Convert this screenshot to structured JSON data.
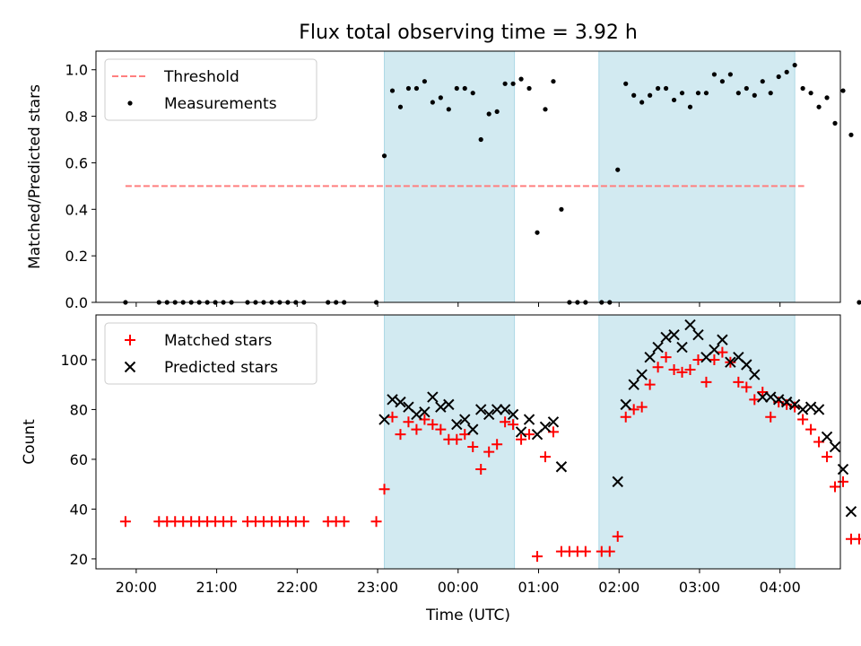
{
  "title": "Flux total observing time = 3.92 h",
  "chart_data": [
    {
      "type": "scatter",
      "ylabel": "Matched/Predicted stars",
      "xlabel": "",
      "xlim": [
        "19:30",
        "04:45"
      ],
      "ylim": [
        0,
        1.08
      ],
      "y_ticks": [
        "0.0",
        "0.2",
        "0.4",
        "0.6",
        "0.8",
        "1.0"
      ],
      "y_tick_values": [
        0,
        0.2,
        0.4,
        0.6,
        0.8,
        1.0
      ],
      "legend": {
        "placement": "upper left",
        "entries": [
          "Threshold",
          "Measurements"
        ]
      },
      "shaded_intervals": [
        [
          "23:05",
          "00:42"
        ],
        [
          "01:45",
          "04:11"
        ]
      ],
      "shade_color": "#add8e6",
      "threshold": {
        "name": "Threshold",
        "y": 0.5,
        "x_range": [
          "19:52",
          "04:18"
        ],
        "color": "#ff7f7f"
      },
      "series": [
        {
          "name": "Measurements",
          "color": "#000000",
          "marker": "dot",
          "points": [
            [
              "19:52",
              0
            ],
            [
              "20:17",
              0
            ],
            [
              "20:23",
              0
            ],
            [
              "20:29",
              0
            ],
            [
              "20:35",
              0
            ],
            [
              "20:41",
              0
            ],
            [
              "20:47",
              0
            ],
            [
              "20:53",
              0
            ],
            [
              "20:59",
              0
            ],
            [
              "21:05",
              0
            ],
            [
              "21:11",
              0
            ],
            [
              "21:23",
              0
            ],
            [
              "21:29",
              0
            ],
            [
              "21:35",
              0
            ],
            [
              "21:41",
              0
            ],
            [
              "21:47",
              0
            ],
            [
              "21:53",
              0
            ],
            [
              "21:59",
              0
            ],
            [
              "22:05",
              0
            ],
            [
              "22:23",
              0
            ],
            [
              "22:29",
              0
            ],
            [
              "22:35",
              0
            ],
            [
              "22:59",
              0
            ],
            [
              "23:05",
              0.63
            ],
            [
              "23:11",
              0.91
            ],
            [
              "23:17",
              0.84
            ],
            [
              "23:23",
              0.92
            ],
            [
              "23:29",
              0.92
            ],
            [
              "23:35",
              0.95
            ],
            [
              "23:41",
              0.86
            ],
            [
              "23:47",
              0.88
            ],
            [
              "23:53",
              0.83
            ],
            [
              "23:59",
              0.92
            ],
            [
              "00:05",
              0.92
            ],
            [
              "00:11",
              0.9
            ],
            [
              "00:17",
              0.7
            ],
            [
              "00:23",
              0.81
            ],
            [
              "00:29",
              0.82
            ],
            [
              "00:35",
              0.94
            ],
            [
              "00:41",
              0.94
            ],
            [
              "00:47",
              0.96
            ],
            [
              "00:53",
              0.92
            ],
            [
              "00:59",
              0.3
            ],
            [
              "01:05",
              0.83
            ],
            [
              "01:11",
              0.95
            ],
            [
              "01:17",
              0.4
            ],
            [
              "01:23",
              0
            ],
            [
              "01:29",
              0
            ],
            [
              "01:35",
              0
            ],
            [
              "01:47",
              0
            ],
            [
              "01:53",
              0
            ],
            [
              "01:59",
              0.57
            ],
            [
              "02:05",
              0.94
            ],
            [
              "02:11",
              0.89
            ],
            [
              "02:17",
              0.86
            ],
            [
              "02:23",
              0.89
            ],
            [
              "02:29",
              0.92
            ],
            [
              "02:35",
              0.92
            ],
            [
              "02:41",
              0.87
            ],
            [
              "02:47",
              0.9
            ],
            [
              "02:53",
              0.84
            ],
            [
              "02:59",
              0.9
            ],
            [
              "03:05",
              0.9
            ],
            [
              "03:11",
              0.98
            ],
            [
              "03:17",
              0.95
            ],
            [
              "03:23",
              0.98
            ],
            [
              "03:29",
              0.9
            ],
            [
              "03:35",
              0.92
            ],
            [
              "03:41",
              0.89
            ],
            [
              "03:47",
              0.95
            ],
            [
              "03:53",
              0.9
            ],
            [
              "03:59",
              0.97
            ],
            [
              "04:05",
              0.99
            ],
            [
              "04:11",
              1.02
            ],
            [
              "04:17",
              0.92
            ],
            [
              "04:23",
              0.9
            ],
            [
              "04:29",
              0.84
            ],
            [
              "04:35",
              0.88
            ],
            [
              "04:41",
              0.77
            ],
            [
              "04:47",
              0.91
            ],
            [
              "04:53",
              0.72
            ],
            [
              "04:59",
              0
            ]
          ]
        }
      ]
    },
    {
      "type": "scatter",
      "ylabel": "Count",
      "xlabel": "Time (UTC)",
      "xlim": [
        "19:30",
        "04:45"
      ],
      "ylim": [
        16,
        118
      ],
      "y_ticks": [
        "20",
        "40",
        "60",
        "80",
        "100"
      ],
      "y_tick_values": [
        20,
        40,
        60,
        80,
        100
      ],
      "x_ticks": [
        "20:00",
        "21:00",
        "22:00",
        "23:00",
        "00:00",
        "01:00",
        "02:00",
        "03:00",
        "04:00"
      ],
      "legend": {
        "placement": "upper left",
        "entries": [
          "Matched stars",
          "Predicted stars"
        ]
      },
      "shaded_intervals": [
        [
          "23:05",
          "00:42"
        ],
        [
          "01:45",
          "04:11"
        ]
      ],
      "shade_color": "#add8e6",
      "series": [
        {
          "name": "Matched stars",
          "color": "#ff0000",
          "marker": "plus",
          "points": [
            [
              "19:52",
              35
            ],
            [
              "20:17",
              35
            ],
            [
              "20:23",
              35
            ],
            [
              "20:29",
              35
            ],
            [
              "20:35",
              35
            ],
            [
              "20:41",
              35
            ],
            [
              "20:47",
              35
            ],
            [
              "20:53",
              35
            ],
            [
              "20:59",
              35
            ],
            [
              "21:05",
              35
            ],
            [
              "21:11",
              35
            ],
            [
              "21:23",
              35
            ],
            [
              "21:29",
              35
            ],
            [
              "21:35",
              35
            ],
            [
              "21:41",
              35
            ],
            [
              "21:47",
              35
            ],
            [
              "21:53",
              35
            ],
            [
              "21:59",
              35
            ],
            [
              "22:05",
              35
            ],
            [
              "22:23",
              35
            ],
            [
              "22:29",
              35
            ],
            [
              "22:35",
              35
            ],
            [
              "22:59",
              35
            ],
            [
              "23:05",
              48
            ],
            [
              "23:11",
              77
            ],
            [
              "23:17",
              70
            ],
            [
              "23:23",
              75
            ],
            [
              "23:29",
              72
            ],
            [
              "23:35",
              76
            ],
            [
              "23:41",
              74
            ],
            [
              "23:47",
              72
            ],
            [
              "23:53",
              68
            ],
            [
              "23:59",
              68
            ],
            [
              "00:05",
              70
            ],
            [
              "00:11",
              65
            ],
            [
              "00:17",
              56
            ],
            [
              "00:23",
              63
            ],
            [
              "00:29",
              66
            ],
            [
              "00:35",
              75
            ],
            [
              "00:41",
              74
            ],
            [
              "00:47",
              68
            ],
            [
              "00:53",
              70
            ],
            [
              "00:59",
              21
            ],
            [
              "01:05",
              61
            ],
            [
              "01:11",
              71
            ],
            [
              "01:17",
              23
            ],
            [
              "01:23",
              23
            ],
            [
              "01:29",
              23
            ],
            [
              "01:35",
              23
            ],
            [
              "01:47",
              23
            ],
            [
              "01:53",
              23
            ],
            [
              "01:59",
              29
            ],
            [
              "02:05",
              77
            ],
            [
              "02:11",
              80
            ],
            [
              "02:17",
              81
            ],
            [
              "02:23",
              90
            ],
            [
              "02:29",
              97
            ],
            [
              "02:35",
              101
            ],
            [
              "02:41",
              96
            ],
            [
              "02:47",
              95
            ],
            [
              "02:53",
              96
            ],
            [
              "02:59",
              100
            ],
            [
              "03:05",
              91
            ],
            [
              "03:11",
              100
            ],
            [
              "03:17",
              103
            ],
            [
              "03:23",
              99
            ],
            [
              "03:29",
              91
            ],
            [
              "03:35",
              89
            ],
            [
              "03:41",
              84
            ],
            [
              "03:47",
              87
            ],
            [
              "03:53",
              77
            ],
            [
              "03:59",
              83
            ],
            [
              "04:05",
              82
            ],
            [
              "04:11",
              81
            ],
            [
              "04:17",
              76
            ],
            [
              "04:23",
              72
            ],
            [
              "04:29",
              67
            ],
            [
              "04:35",
              61
            ],
            [
              "04:41",
              49
            ],
            [
              "04:47",
              51
            ],
            [
              "04:53",
              28
            ],
            [
              "04:59",
              28
            ]
          ]
        },
        {
          "name": "Predicted stars",
          "color": "#000000",
          "marker": "x",
          "points": [
            [
              "23:05",
              76
            ],
            [
              "23:11",
              84
            ],
            [
              "23:17",
              83
            ],
            [
              "23:23",
              81
            ],
            [
              "23:29",
              78
            ],
            [
              "23:35",
              79
            ],
            [
              "23:41",
              85
            ],
            [
              "23:47",
              81
            ],
            [
              "23:53",
              82
            ],
            [
              "23:59",
              74
            ],
            [
              "00:05",
              76
            ],
            [
              "00:11",
              72
            ],
            [
              "00:17",
              80
            ],
            [
              "00:23",
              78
            ],
            [
              "00:29",
              80
            ],
            [
              "00:35",
              80
            ],
            [
              "00:41",
              78
            ],
            [
              "00:47",
              71
            ],
            [
              "00:53",
              76
            ],
            [
              "00:59",
              70
            ],
            [
              "01:05",
              73
            ],
            [
              "01:11",
              75
            ],
            [
              "01:17",
              57
            ],
            [
              "01:59",
              51
            ],
            [
              "02:05",
              82
            ],
            [
              "02:11",
              90
            ],
            [
              "02:17",
              94
            ],
            [
              "02:23",
              101
            ],
            [
              "02:29",
              105
            ],
            [
              "02:35",
              109
            ],
            [
              "02:41",
              110
            ],
            [
              "02:47",
              105
            ],
            [
              "02:53",
              114
            ],
            [
              "02:59",
              110
            ],
            [
              "03:05",
              101
            ],
            [
              "03:11",
              104
            ],
            [
              "03:17",
              108
            ],
            [
              "03:23",
              99
            ],
            [
              "03:29",
              101
            ],
            [
              "03:35",
              98
            ],
            [
              "03:41",
              94
            ],
            [
              "03:47",
              85
            ],
            [
              "03:53",
              85
            ],
            [
              "03:59",
              84
            ],
            [
              "04:05",
              83
            ],
            [
              "04:11",
              82
            ],
            [
              "04:17",
              80
            ],
            [
              "04:23",
              81
            ],
            [
              "04:29",
              80
            ],
            [
              "04:35",
              69
            ],
            [
              "04:41",
              65
            ],
            [
              "04:47",
              56
            ],
            [
              "04:53",
              39
            ]
          ]
        }
      ]
    }
  ]
}
